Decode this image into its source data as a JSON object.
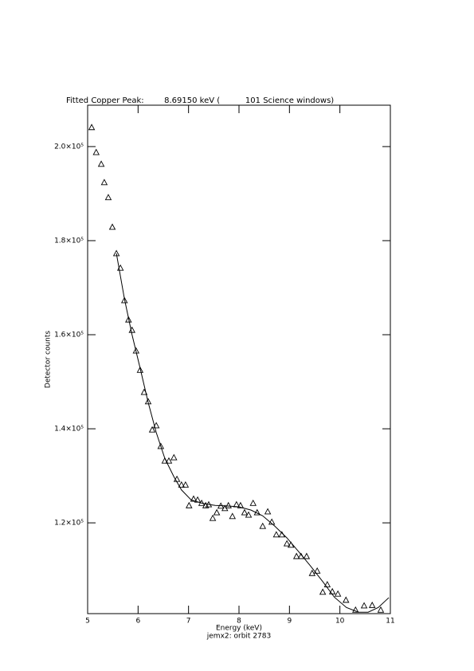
{
  "chart_data": {
    "type": "scatter",
    "title": "Fitted Copper Peak:        8.69150 keV (          101 Science windows)",
    "xlabel": "Energy (keV)",
    "ylabel": "Detector counts",
    "footer": "jemx2: orbit 2783",
    "xlim": [
      5,
      11
    ],
    "xticks": [
      5,
      6,
      7,
      8,
      9,
      10,
      11
    ],
    "ylim": [
      100700,
      208800
    ],
    "yticks": [
      {
        "value": 120000,
        "label": "1.2×10⁵"
      },
      {
        "value": 140000,
        "label": "1.4×10⁵"
      },
      {
        "value": 160000,
        "label": "1.6×10⁵"
      },
      {
        "value": 180000,
        "label": "1.8×10⁵"
      },
      {
        "value": 200000,
        "label": "2.0×10⁵"
      }
    ],
    "series": [
      {
        "style": "triangle",
        "color": "#000000",
        "x": [
          5.08,
          5.17,
          5.27,
          5.33,
          5.41,
          5.49,
          5.57,
          5.65,
          5.73,
          5.81,
          5.88,
          5.96,
          6.04,
          6.12,
          6.2,
          6.28,
          6.36,
          6.45,
          6.53,
          6.61,
          6.71,
          6.77,
          6.86,
          6.94,
          7.01,
          7.1,
          7.18,
          7.26,
          7.34,
          7.4,
          7.48,
          7.56,
          7.64,
          7.72,
          7.79,
          7.87,
          7.95,
          8.03,
          8.11,
          8.19,
          8.28,
          8.36,
          8.47,
          8.57,
          8.65,
          8.74,
          8.85,
          8.95,
          9.03,
          9.14,
          9.23,
          9.34,
          9.45,
          9.55,
          9.66,
          9.75,
          9.85,
          9.96,
          10.12,
          10.31,
          10.48,
          10.64,
          10.81
        ],
        "values": [
          204100,
          198800,
          196300,
          192400,
          189200,
          182900,
          177300,
          174200,
          167300,
          163200,
          161000,
          156600,
          152500,
          147800,
          145800,
          139800,
          140700,
          136300,
          133200,
          133200,
          133900,
          129300,
          128100,
          128100,
          123700,
          125100,
          124900,
          124200,
          123700,
          123900,
          121000,
          122200,
          123600,
          123100,
          123700,
          121400,
          123900,
          123700,
          122200,
          121700,
          124200,
          122200,
          119300,
          122400,
          120200,
          117500,
          117500,
          115600,
          115300,
          112900,
          112900,
          112900,
          109300,
          109800,
          105300,
          106900,
          105400,
          104900,
          103600,
          101500,
          102400,
          102500,
          101500
        ]
      },
      {
        "style": "line",
        "color": "#000000",
        "x": [
          5.57,
          5.73,
          5.88,
          6.04,
          6.2,
          6.36,
          6.53,
          6.71,
          6.86,
          7.05,
          7.29,
          7.53,
          7.76,
          8.0,
          8.24,
          8.47,
          8.71,
          8.95,
          9.18,
          9.42,
          9.66,
          9.89,
          10.13,
          10.37,
          10.56,
          10.76,
          10.97
        ],
        "values": [
          177300,
          167600,
          160000,
          152900,
          145600,
          139200,
          133700,
          129800,
          127000,
          124900,
          124100,
          123700,
          123600,
          123400,
          122700,
          121500,
          119300,
          116800,
          113900,
          110800,
          107500,
          104200,
          102000,
          101000,
          101000,
          102000,
          104100
        ]
      }
    ]
  }
}
